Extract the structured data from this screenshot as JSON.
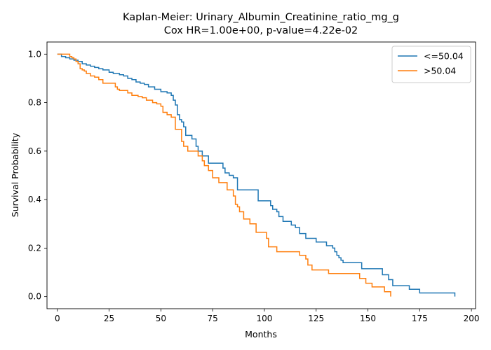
{
  "chart_data": {
    "type": "line",
    "title": "Kaplan-Meier: Urinary_Albumin_Creatinine_ratio_mg_g",
    "subtitle": "Cox HR=1.00e+00, p-value=4.22e-02",
    "xlabel": "Months",
    "ylabel": "Survival Probability",
    "xlim": [
      -5,
      202
    ],
    "ylim": [
      -0.05,
      1.05
    ],
    "xticks": [
      0,
      25,
      50,
      75,
      100,
      125,
      150,
      175,
      200
    ],
    "yticks": [
      0.0,
      0.2,
      0.4,
      0.6,
      0.8,
      1.0
    ],
    "grid": false,
    "legend_position": "top-right",
    "series": [
      {
        "name": "<=50.04",
        "color": "#1f77b4",
        "step": "post",
        "x": [
          0,
          2,
          4,
          6,
          8,
          10,
          12,
          14,
          16,
          18,
          20,
          22,
          25,
          27,
          30,
          32,
          34,
          36,
          38,
          40,
          42,
          44,
          47,
          50,
          53,
          55,
          56,
          57,
          58,
          59,
          60,
          61,
          62,
          65,
          67,
          68,
          70,
          73,
          75,
          80,
          81,
          83,
          85,
          87,
          95,
          97,
          103,
          104,
          106,
          107,
          109,
          113,
          115,
          117,
          120,
          125,
          130,
          133,
          134,
          135,
          136,
          137,
          138,
          145,
          147,
          148,
          157,
          160,
          162,
          170,
          175,
          185,
          192
        ],
        "y": [
          1.0,
          0.99,
          0.985,
          0.98,
          0.975,
          0.97,
          0.96,
          0.955,
          0.95,
          0.945,
          0.94,
          0.935,
          0.925,
          0.92,
          0.915,
          0.91,
          0.9,
          0.895,
          0.885,
          0.88,
          0.875,
          0.865,
          0.855,
          0.845,
          0.84,
          0.83,
          0.81,
          0.79,
          0.75,
          0.73,
          0.72,
          0.7,
          0.665,
          0.65,
          0.62,
          0.6,
          0.58,
          0.55,
          0.55,
          0.53,
          0.51,
          0.5,
          0.49,
          0.44,
          0.44,
          0.395,
          0.375,
          0.36,
          0.35,
          0.33,
          0.31,
          0.295,
          0.285,
          0.26,
          0.24,
          0.225,
          0.21,
          0.2,
          0.185,
          0.17,
          0.16,
          0.15,
          0.14,
          0.14,
          0.115,
          0.115,
          0.09,
          0.07,
          0.045,
          0.03,
          0.015,
          0.015,
          0.0
        ]
      },
      {
        "name": ">50.04",
        "color": "#ff7f0e",
        "step": "post",
        "x": [
          0,
          6,
          7,
          8,
          9,
          10,
          11,
          12,
          13,
          14,
          16,
          18,
          20,
          22,
          28,
          29,
          30,
          34,
          36,
          39,
          41,
          43,
          46,
          48,
          50,
          51,
          53,
          55,
          57,
          60,
          61,
          63,
          68,
          70,
          71,
          73,
          75,
          78,
          82,
          85,
          86,
          87,
          88,
          90,
          93,
          96,
          101,
          102,
          106,
          117,
          120,
          121,
          123,
          131,
          146,
          149,
          152,
          158,
          161
        ],
        "y": [
          1.0,
          0.99,
          0.985,
          0.98,
          0.97,
          0.96,
          0.94,
          0.935,
          0.93,
          0.92,
          0.91,
          0.905,
          0.895,
          0.88,
          0.865,
          0.855,
          0.85,
          0.84,
          0.83,
          0.825,
          0.82,
          0.81,
          0.8,
          0.795,
          0.785,
          0.76,
          0.75,
          0.74,
          0.69,
          0.64,
          0.62,
          0.6,
          0.58,
          0.56,
          0.54,
          0.52,
          0.49,
          0.47,
          0.44,
          0.415,
          0.38,
          0.37,
          0.35,
          0.32,
          0.3,
          0.265,
          0.24,
          0.205,
          0.185,
          0.17,
          0.155,
          0.13,
          0.11,
          0.095,
          0.075,
          0.055,
          0.04,
          0.02,
          0.0
        ]
      }
    ]
  }
}
